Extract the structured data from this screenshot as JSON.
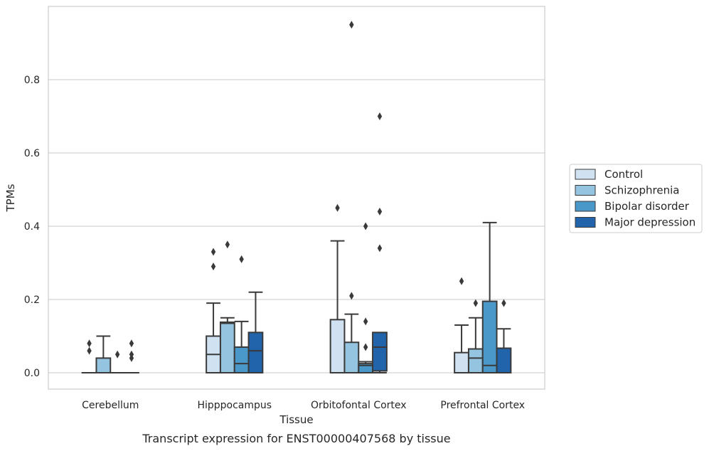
{
  "chart_data": {
    "type": "box",
    "caption": "Transcript expression for ENST00000407568 by tissue",
    "xlabel": "Tissue",
    "ylabel": "TPMs",
    "ylim": [
      -0.045,
      1.0
    ],
    "yticks": [
      0.0,
      0.2,
      0.4,
      0.6,
      0.8
    ],
    "ytick_labels": [
      "0.0",
      "0.2",
      "0.4",
      "0.6",
      "0.8"
    ],
    "categories": [
      "Cerebellum",
      "Hipppocampus",
      "Orbitofontal Cortex",
      "Prefrontal Cortex"
    ],
    "grid": "horizontal",
    "legend_position": "right",
    "series": [
      {
        "name": "Control",
        "color": "#d0e1f2",
        "boxes": [
          {
            "whislo": 0,
            "q1": 0,
            "med": 0,
            "q3": 0,
            "whishi": 0,
            "fliers": [
              0.06,
              0.08
            ]
          },
          {
            "whislo": 0,
            "q1": 0,
            "med": 0.05,
            "q3": 0.1,
            "whishi": 0.19,
            "fliers": [
              0.29,
              0.33
            ]
          },
          {
            "whislo": 0,
            "q1": 0,
            "med": 0,
            "q3": 0.145,
            "whishi": 0.36,
            "fliers": [
              0.45
            ]
          },
          {
            "whislo": 0,
            "q1": 0,
            "med": 0,
            "q3": 0.055,
            "whishi": 0.13,
            "fliers": [
              0.25
            ]
          }
        ]
      },
      {
        "name": "Schizophrenia",
        "color": "#94c4df",
        "boxes": [
          {
            "whislo": 0,
            "q1": 0,
            "med": 0,
            "q3": 0.04,
            "whishi": 0.1,
            "fliers": []
          },
          {
            "whislo": 0,
            "q1": 0,
            "med": 0.135,
            "q3": 0.138,
            "whishi": 0.15,
            "fliers": [
              0.35
            ]
          },
          {
            "whislo": 0,
            "q1": 0,
            "med": 0,
            "q3": 0.083,
            "whishi": 0.16,
            "fliers": [
              0.21,
              0.95
            ]
          },
          {
            "whislo": 0,
            "q1": 0,
            "med": 0.04,
            "q3": 0.065,
            "whishi": 0.15,
            "fliers": [
              0.19
            ]
          }
        ]
      },
      {
        "name": "Bipolar disorder",
        "color": "#4a98c9",
        "boxes": [
          {
            "whislo": 0,
            "q1": 0,
            "med": 0,
            "q3": 0,
            "whishi": 0,
            "fliers": [
              0.05
            ]
          },
          {
            "whislo": 0,
            "q1": 0,
            "med": 0.025,
            "q3": 0.07,
            "whishi": 0.14,
            "fliers": [
              0.31
            ]
          },
          {
            "whislo": 0,
            "q1": 0,
            "med": 0.02,
            "q3": 0.025,
            "whishi": 0.03,
            "fliers": [
              0.07,
              0.14,
              0.4
            ]
          },
          {
            "whislo": 0,
            "q1": 0,
            "med": 0.02,
            "q3": 0.195,
            "whishi": 0.41,
            "fliers": []
          }
        ]
      },
      {
        "name": "Major depression",
        "color": "#2164ab",
        "boxes": [
          {
            "whislo": 0,
            "q1": 0,
            "med": 0,
            "q3": 0,
            "whishi": 0,
            "fliers": [
              0.04,
              0.05,
              0.08
            ]
          },
          {
            "whislo": 0,
            "q1": 0,
            "med": 0.06,
            "q3": 0.11,
            "whishi": 0.22,
            "fliers": []
          },
          {
            "whislo": 0,
            "q1": 0.005,
            "med": 0.07,
            "q3": 0.11,
            "whishi": 0.11,
            "fliers": [
              0.34,
              0.44,
              0.7
            ]
          },
          {
            "whislo": 0,
            "q1": 0,
            "med": 0,
            "q3": 0.067,
            "whishi": 0.12,
            "fliers": [
              0.19
            ]
          }
        ]
      }
    ]
  }
}
